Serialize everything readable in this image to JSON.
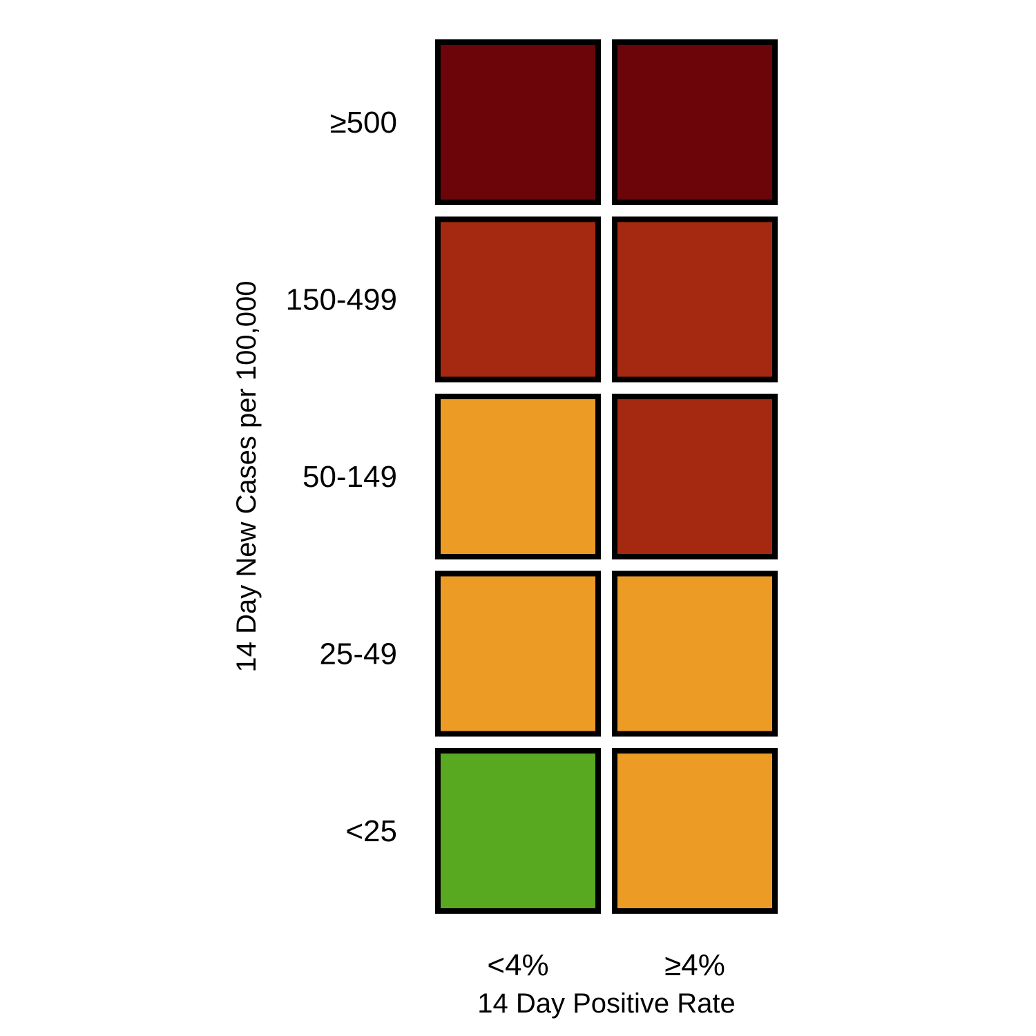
{
  "chart_data": {
    "type": "heatmap",
    "xlabel": "14 Day Positive Rate",
    "ylabel": "14 Day New Cases per 100,000",
    "x_categories": [
      "<4%",
      "≥4%"
    ],
    "y_categories": [
      "≥500",
      "150-499",
      "50-149",
      "25-49",
      "<25"
    ],
    "cells": [
      [
        "#6b0509",
        "#6b0509"
      ],
      [
        "#a52811",
        "#a52811"
      ],
      [
        "#ec9b24",
        "#a52811"
      ],
      [
        "#ec9b24",
        "#ec9b24"
      ],
      [
        "#58a820",
        "#ec9b24"
      ]
    ],
    "cell_border_color": "#000000",
    "grid": false
  }
}
